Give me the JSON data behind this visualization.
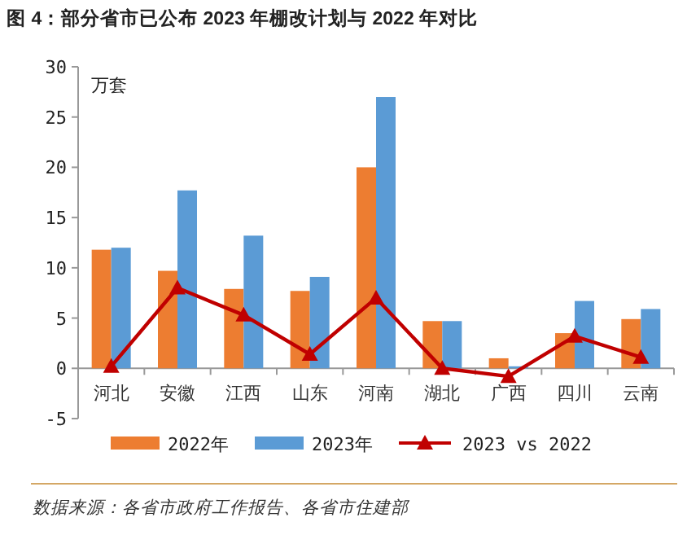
{
  "chart_data": {
    "type": "bar",
    "title": "图 4：部分省市已公布 2023 年棚改计划与 2022 年对比",
    "ylabel": "万套",
    "categories": [
      "河北",
      "安徽",
      "江西",
      "山东",
      "河南",
      "湖北",
      "广西",
      "四川",
      "云南"
    ],
    "series": [
      {
        "name": "2022年",
        "color": "#ed7d31",
        "values": [
          11.8,
          9.7,
          7.9,
          7.7,
          20,
          4.7,
          1.0,
          3.5,
          4.9
        ]
      },
      {
        "name": "2023年",
        "color": "#5b9bd5",
        "values": [
          12,
          17.7,
          13.2,
          9.1,
          27,
          4.7,
          0.2,
          6.7,
          5.9
        ]
      },
      {
        "name": "2023 vs 2022",
        "type": "line",
        "color": "#c00000",
        "values": [
          0.2,
          8.0,
          5.3,
          1.4,
          7.0,
          0,
          -0.8,
          3.2,
          1.1
        ]
      }
    ],
    "ylim": [
      -5,
      30
    ],
    "yticks": [
      -5,
      0,
      5,
      10,
      15,
      20,
      25,
      30
    ],
    "legend": "bottom",
    "marker": "triangle",
    "grid": false,
    "annotations": [
      "数据来源：各省市政府工作报告、各省市住建部"
    ]
  }
}
